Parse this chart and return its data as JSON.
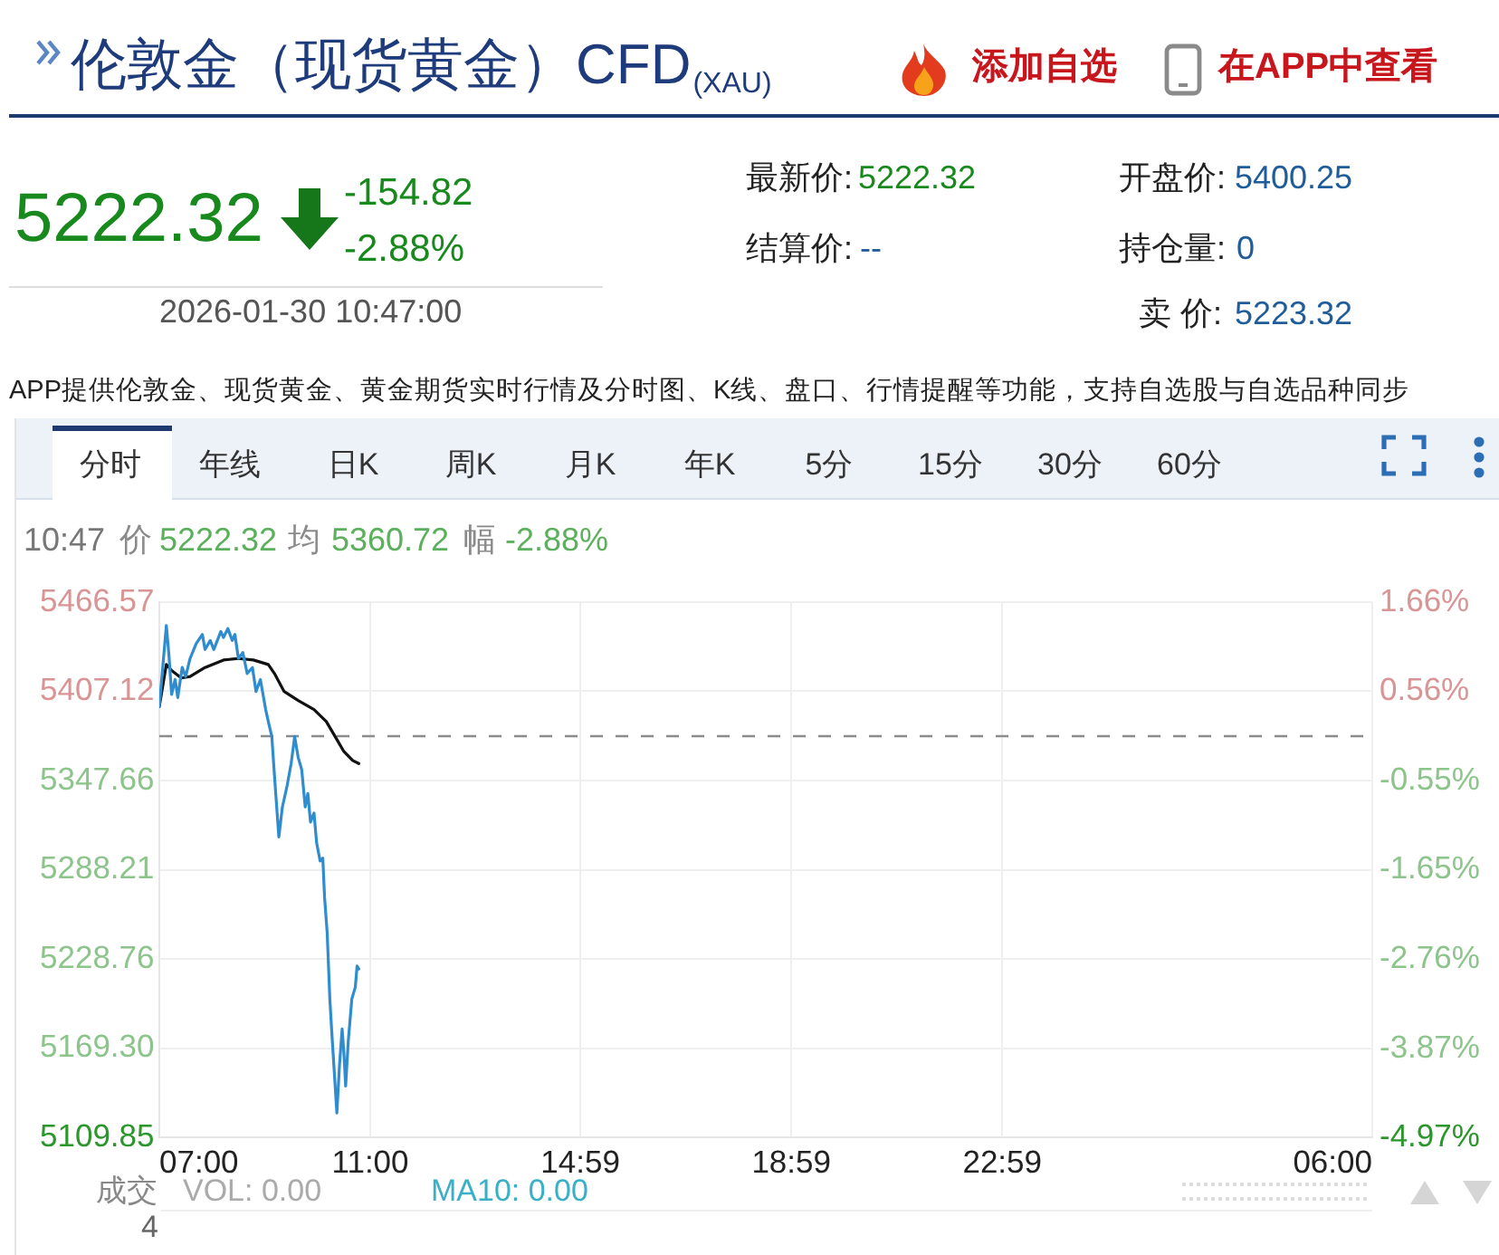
{
  "chart_data": {
    "type": "line",
    "title": "伦敦金（现货黄金）CFD$_{(XAU)}$",
    "annotations": [
      "添加自选",
      "在APP中查看",
      "5222.32",
      "-154.82",
      "-2.88%",
      "2026-01-30 10:47:00",
      "最新价:",
      "5222.32",
      "开盘价:",
      "5400.25",
      "结算价:",
      "--",
      "持仓量:",
      "0",
      "卖 价:",
      "5223.32",
      "APP提供伦敦金、现货黄金、黄金期货实时行情及分时图、K线、盘口、行情提醒等功能，支持自选股与自选品种同步",
      "分时",
      "年线",
      "日K",
      "周K",
      "月K",
      "年K",
      "5分",
      "15分",
      "30分",
      "60分",
      "10:47",
      "价",
      "5222.32",
      "均",
      "5360.72",
      "幅",
      "-2.88%",
      "成交",
      "VOL: 0.00",
      "MA10: 0.00",
      "4"
    ],
    "series": [
      {
        "color": "#2f8ccf",
        "x": [
          "2026-01-30T07:00",
          "2026-01-30T07:08",
          "2026-01-30T07:11",
          "2026-01-30T07:14",
          "2026-01-30T07:18",
          "2026-01-30T07:21",
          "2026-01-30T07:26",
          "2026-01-30T07:30",
          "2026-01-30T07:35",
          "2026-01-30T07:42",
          "2026-01-30T07:49",
          "2026-01-30T07:52",
          "2026-01-30T07:58",
          "2026-01-30T08:02",
          "2026-01-30T08:10",
          "2026-01-30T08:13",
          "2026-01-30T08:18",
          "2026-01-30T08:23",
          "2026-01-30T08:26",
          "2026-01-30T08:30",
          "2026-01-30T08:35",
          "2026-01-30T08:40",
          "2026-01-30T08:46",
          "2026-01-30T08:50",
          "2026-01-30T08:55",
          "2026-01-30T09:01",
          "2026-01-30T09:04",
          "2026-01-30T09:08",
          "2026-01-30T09:11",
          "2026-01-30T09:16",
          "2026-01-30T09:20",
          "2026-01-30T09:25",
          "2026-01-30T09:30",
          "2026-01-30T09:34",
          "2026-01-30T09:38",
          "2026-01-30T09:42",
          "2026-01-30T09:46",
          "2026-01-30T09:49",
          "2026-01-30T09:52",
          "2026-01-30T09:56",
          "2026-01-30T09:59",
          "2026-01-30T10:03",
          "2026-01-30T10:06",
          "2026-01-30T10:08",
          "2026-01-30T10:11",
          "2026-01-30T10:14",
          "2026-01-30T10:16",
          "2026-01-30T10:19",
          "2026-01-30T10:22",
          "2026-01-30T10:25",
          "2026-01-30T10:28",
          "2026-01-30T10:30",
          "2026-01-30T10:32",
          "2026-01-30T10:35",
          "2026-01-30T10:39",
          "2026-01-30T10:43",
          "2026-01-30T10:45",
          "2026-01-30T10:47"
        ],
        "values": [
          5397,
          5451,
          5431,
          5405,
          5415,
          5403,
          5423,
          5417,
          5429,
          5439,
          5445,
          5435,
          5441,
          5435,
          5447,
          5443,
          5449,
          5441,
          5445,
          5429,
          5433,
          5419,
          5423,
          5407,
          5415,
          5395,
          5387,
          5377,
          5351,
          5310,
          5330,
          5343,
          5359,
          5377,
          5363,
          5355,
          5330,
          5339,
          5320,
          5326,
          5306,
          5294,
          5296,
          5270,
          5246,
          5202,
          5182,
          5154,
          5126,
          5158,
          5182,
          5166,
          5144,
          5174,
          5202,
          5210,
          5224,
          5222
        ]
      },
      {
        "color": "#111111",
        "x": [
          "2026-01-30T07:00",
          "2026-01-30T07:08",
          "2026-01-30T07:14",
          "2026-01-30T07:25",
          "2026-01-30T07:35",
          "2026-01-30T07:52",
          "2026-01-30T08:13",
          "2026-01-30T08:30",
          "2026-01-30T08:47",
          "2026-01-30T09:04",
          "2026-01-30T09:11",
          "2026-01-30T09:22",
          "2026-01-30T09:38",
          "2026-01-30T09:56",
          "2026-01-30T10:10",
          "2026-01-30T10:20",
          "2026-01-30T10:30",
          "2026-01-30T10:40",
          "2026-01-30T10:47"
        ],
        "values": [
          5397,
          5425,
          5421,
          5416,
          5417,
          5423,
          5428,
          5429,
          5428,
          5425,
          5419,
          5407,
          5401,
          5395,
          5387,
          5377,
          5367,
          5361,
          5359
        ]
      }
    ],
    "xlim": [
      "2026-01-30T07:00",
      "2026-01-31T06:00"
    ],
    "xticks": [
      {
        "value": "2026-01-30T07:00",
        "label": "07:00"
      },
      {
        "value": "2026-01-30T11:00",
        "label": "11:00"
      },
      {
        "value": "2026-01-30T14:59",
        "label": "14:59"
      },
      {
        "value": "2026-01-30T18:59",
        "label": "18:59"
      },
      {
        "value": "2026-01-30T22:59",
        "label": "22:59"
      },
      {
        "value": "2026-01-31T06:00",
        "label": "06:00"
      }
    ],
    "ylim": [
      5109.85,
      5466.57
    ],
    "yticks": [
      5109.85,
      {
        "value": 5169.3,
        "label": "5169.30"
      },
      5228.76,
      5288.21,
      5347.66,
      5407.12,
      5466.57
    ],
    "y2lim": [
      -4.97,
      1.66
    ],
    "y2ticks": [
      {
        "value": -4.97,
        "label": "-4.97%"
      },
      {
        "value": -3.87,
        "label": "-3.87%"
      },
      {
        "value": -2.76,
        "label": "-2.76%"
      },
      {
        "value": -1.65,
        "label": "-1.65%"
      },
      {
        "value": -0.55,
        "label": "-0.55%"
      },
      {
        "value": 0.56,
        "label": "0.56%"
      },
      {
        "value": 1.66,
        "label": "1.66%"
      }
    ],
    "ref_lines": [
      {
        "axis": "y2",
        "value": 0,
        "color": "#8c8c8c",
        "line_style": "dashed"
      }
    ],
    "grid": true,
    "marker": "none"
  }
}
